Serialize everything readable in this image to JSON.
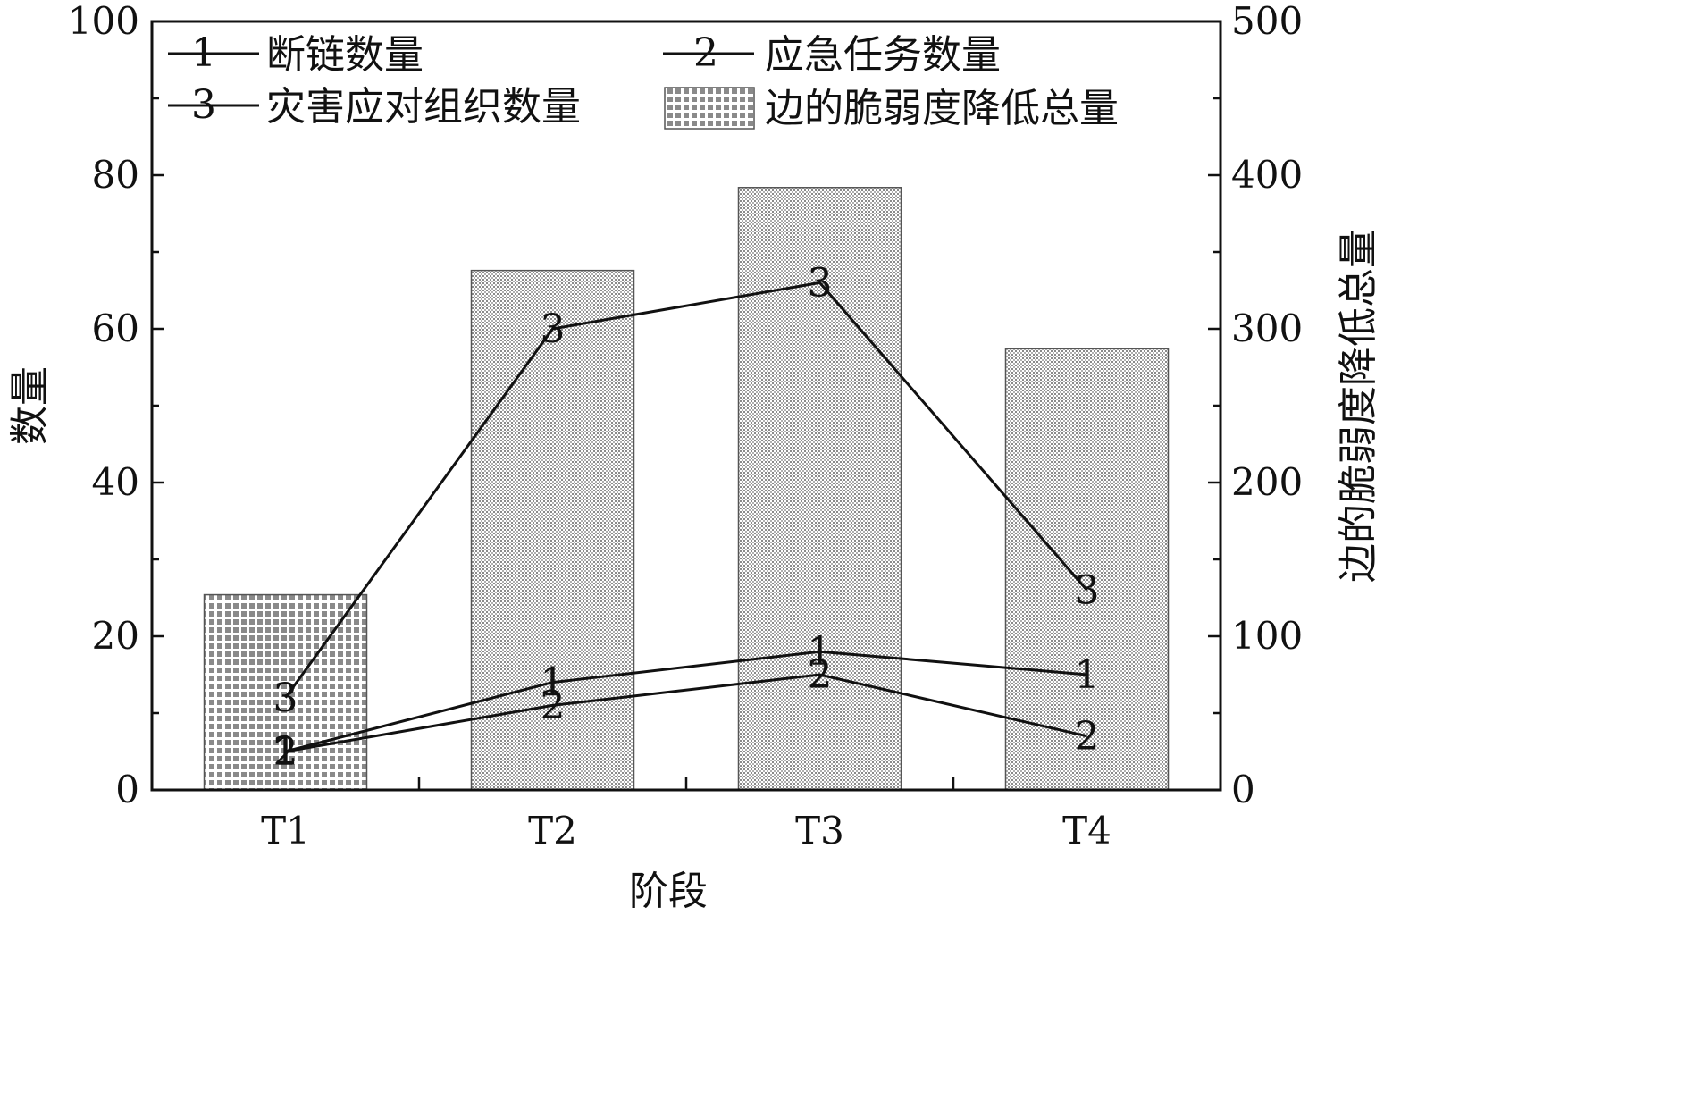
{
  "chart_data": {
    "type": "bar+line",
    "categories": [
      "T1",
      "T2",
      "T3",
      "T4"
    ],
    "xlabel": "阶段",
    "ylabel_left": "数量",
    "ylabel_right": "边的脆弱度降低总量",
    "ylim_left": [
      0,
      100
    ],
    "ylim_right": [
      0,
      500
    ],
    "yticks_left": [
      "0",
      "20",
      "40",
      "60",
      "80",
      "100"
    ],
    "yticks_right": [
      "0",
      "100",
      "200",
      "300",
      "400",
      "500"
    ],
    "bars": {
      "name": "边的脆弱度降低总量",
      "axis": "right",
      "values": [
        127,
        338,
        392,
        287
      ]
    },
    "series": [
      {
        "name": "断链数量",
        "marker": "1",
        "axis": "left",
        "values": [
          5,
          14,
          18,
          15
        ]
      },
      {
        "name": "应急任务数量",
        "marker": "2",
        "axis": "left",
        "values": [
          5,
          11,
          15,
          7
        ]
      },
      {
        "name": "灾害应对组织数量",
        "marker": "3",
        "axis": "left",
        "values": [
          12,
          60,
          66,
          26
        ]
      }
    ],
    "legend": {
      "position": "top",
      "entries": [
        {
          "marker": "1",
          "label": "断链数量"
        },
        {
          "marker": "2",
          "label": "应急任务数量"
        },
        {
          "marker": "3",
          "label": "灾害应对组织数量"
        },
        {
          "marker": "bar",
          "label": "边的脆弱度降低总量"
        }
      ]
    },
    "colors": {
      "line": "#111111",
      "bar_fill": "#cfcfcf",
      "bar_edge": "#555555"
    }
  }
}
